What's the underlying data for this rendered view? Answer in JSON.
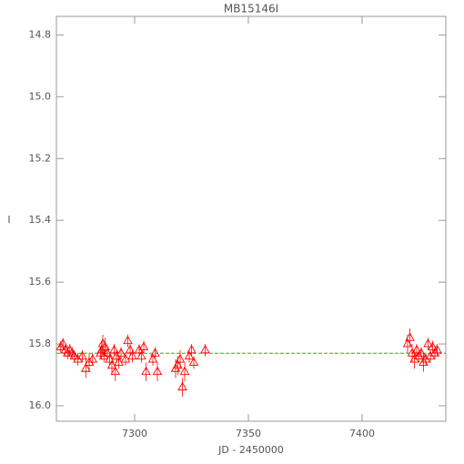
{
  "chart_data": {
    "type": "scatter",
    "title": "MB15146I",
    "x_label": "JD - 2450000",
    "y_label": "I",
    "xlim": [
      7265.6,
      7436.8
    ],
    "xticks": [
      7300,
      7350,
      7400
    ],
    "ylim": [
      16.05,
      14.74
    ],
    "yticks": [
      14.8,
      {
        "value": 15,
        "label": "15.0"
      },
      15.2,
      15.4,
      15.6,
      15.8,
      {
        "value": 16,
        "label": "16.0"
      }
    ],
    "reference_line": {
      "value": 15.83,
      "color": "#00cc00"
    },
    "series": [
      {
        "name": "MB15146I",
        "color": "#ff0000",
        "x": [
          7267.5,
          7268.5,
          7269.5,
          7270.5,
          7271.5,
          7272.5,
          7273.5,
          7275,
          7277,
          7278.5,
          7280,
          7281.5,
          7285,
          7285.5,
          7286,
          7286.5,
          7287,
          7288,
          7289,
          7290,
          7291,
          7291.5,
          7292,
          7293,
          7294,
          7296,
          7297,
          7298,
          7299,
          7302,
          7303,
          7304,
          7305,
          7308,
          7309,
          7310,
          7318,
          7319,
          7320,
          7321,
          7322,
          7324,
          7325,
          7326,
          7331,
          7420,
          7421,
          7422,
          7423,
          7424,
          7425,
          7426,
          7427,
          7428,
          7429,
          7430,
          7431,
          7432,
          7433
        ],
        "values": [
          15.81,
          15.8,
          15.82,
          15.83,
          15.82,
          15.83,
          15.84,
          15.85,
          15.84,
          15.88,
          15.86,
          15.85,
          15.83,
          15.82,
          15.8,
          15.84,
          15.81,
          15.83,
          15.85,
          15.87,
          15.82,
          15.89,
          15.84,
          15.86,
          15.83,
          15.85,
          15.79,
          15.82,
          15.84,
          15.82,
          15.84,
          15.81,
          15.89,
          15.85,
          15.83,
          15.89,
          15.88,
          15.87,
          15.85,
          15.94,
          15.89,
          15.84,
          15.82,
          15.86,
          15.82,
          15.8,
          15.78,
          15.83,
          15.85,
          15.82,
          15.84,
          15.83,
          15.86,
          15.85,
          15.8,
          15.84,
          15.81,
          15.83,
          15.82
        ],
        "errors": [
          0.02,
          0.02,
          0.02,
          0.02,
          0.02,
          0.02,
          0.02,
          0.02,
          0.02,
          0.03,
          0.03,
          0.02,
          0.02,
          0.03,
          0.03,
          0.02,
          0.03,
          0.02,
          0.02,
          0.03,
          0.02,
          0.03,
          0.02,
          0.02,
          0.02,
          0.02,
          0.02,
          0.02,
          0.02,
          0.02,
          0.02,
          0.02,
          0.03,
          0.02,
          0.02,
          0.03,
          0.03,
          0.03,
          0.03,
          0.03,
          0.03,
          0.02,
          0.02,
          0.02,
          0.02,
          0.03,
          0.03,
          0.03,
          0.03,
          0.02,
          0.02,
          0.02,
          0.03,
          0.02,
          0.02,
          0.02,
          0.02,
          0.02,
          0.02
        ]
      }
    ]
  }
}
